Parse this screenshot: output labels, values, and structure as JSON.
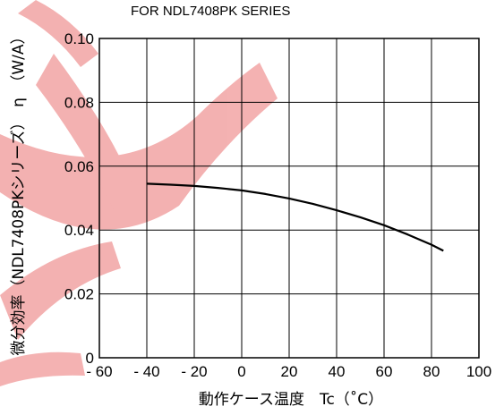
{
  "chart_data": {
    "type": "line",
    "title": "FOR NDL7408PK SERIES",
    "xlabel": "動作ケース温度　Tc（˚C）",
    "ylabel": "微分効率（NDL7408PKシリーズ）　η　（W/A）",
    "xlim": [
      -60,
      100
    ],
    "ylim": [
      0,
      0.1
    ],
    "x_ticks": [
      "- 60",
      "- 40",
      "- 20",
      "0",
      "20",
      "40",
      "60",
      "80",
      "100"
    ],
    "y_ticks": [
      "0",
      "0.02",
      "0.04",
      "0.06",
      "0.08",
      "0.10"
    ],
    "x_tick_values": [
      -60,
      -40,
      -20,
      0,
      20,
      40,
      60,
      80,
      100
    ],
    "y_tick_values": [
      0,
      0.02,
      0.04,
      0.06,
      0.08,
      0.1
    ],
    "grid": true,
    "series": [
      {
        "x": [
          -40,
          -30,
          -20,
          -10,
          0,
          10,
          20,
          30,
          40,
          50,
          60,
          70,
          80,
          85
        ],
        "y": [
          0.0545,
          0.0542,
          0.0538,
          0.0532,
          0.0524,
          0.0513,
          0.0499,
          0.0482,
          0.0462,
          0.044,
          0.0415,
          0.0386,
          0.0354,
          0.0335
        ],
        "color": "#000000"
      }
    ],
    "watermark_color": "#f2a4a4"
  }
}
